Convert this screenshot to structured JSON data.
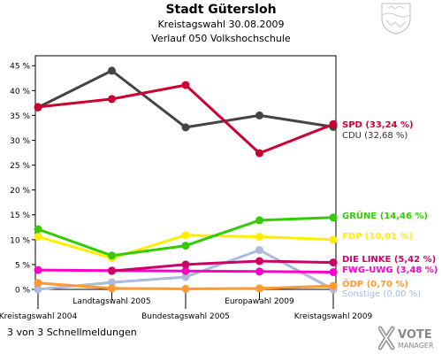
{
  "header": {
    "title": "Stadt Gütersloh",
    "subtitle": "Kreistagswahl 30.08.2009",
    "subtitle2": "Verlauf 050 Volkshochschule"
  },
  "footer": {
    "text": "3 von 3 Schnellmeldungen"
  },
  "logo": {
    "line1": "VOTE",
    "line2": "MANAGER"
  },
  "chart_data": {
    "type": "line",
    "x": [
      "Kreistagswahl 2004",
      "Landtagswahl 2005",
      "Bundestagswahl 2005",
      "Europawahl 2009",
      "Kreistagswahl 2009"
    ],
    "ylim": [
      0,
      47
    ],
    "yticks": [
      {
        "value": 0,
        "label": "0 %"
      },
      {
        "value": 5,
        "label": "5 %"
      },
      {
        "value": 10,
        "label": "10 %"
      },
      {
        "value": 15,
        "label": "15 %"
      },
      {
        "value": 20,
        "label": "20 %"
      },
      {
        "value": 25,
        "label": "25 %"
      },
      {
        "value": 30,
        "label": "30 %"
      },
      {
        "value": 35,
        "label": "35 %"
      },
      {
        "value": 40,
        "label": "40 %"
      },
      {
        "value": 45,
        "label": "45 %"
      }
    ],
    "grid": false,
    "legend": "right",
    "series": [
      {
        "name": "SPD",
        "label": "SPD (33,24 %)",
        "color": "#cc0033",
        "values": [
          36.7,
          38.3,
          41.1,
          27.4,
          33.24
        ]
      },
      {
        "name": "CDU",
        "label": "CDU (32,68 %)",
        "color": "#444444",
        "values": [
          36.6,
          44.0,
          32.6,
          35.0,
          32.68
        ]
      },
      {
        "name": "GRÜNE",
        "label": "GRÜNE (14,46 %)",
        "color": "#33cc00",
        "values": [
          12.1,
          6.8,
          8.8,
          13.9,
          14.46
        ]
      },
      {
        "name": "FDP",
        "label": "FDP (10,01 %)",
        "color": "#ffee00",
        "values": [
          10.6,
          6.3,
          10.9,
          10.6,
          10.01
        ]
      },
      {
        "name": "DIE LINKE",
        "label": "DIE LINKE (5,42 %)",
        "color": "#cc0066",
        "values": [
          null,
          3.7,
          5.0,
          5.7,
          5.42
        ]
      },
      {
        "name": "FWG-UWG",
        "label": "FWG-UWG (3,48 %)",
        "color": "#ff00cc",
        "values": [
          3.9,
          3.8,
          3.7,
          3.6,
          3.48
        ]
      },
      {
        "name": "ÖDP",
        "label": "ÖDP (0,70 %)",
        "color": "#ff9933",
        "values": [
          1.3,
          0.2,
          0.1,
          0.2,
          0.7
        ]
      },
      {
        "name": "Sonstige",
        "label": "Sonstige (0,00 %)",
        "color": "#aabbdd",
        "values": [
          0.0,
          1.4,
          2.5,
          7.9,
          0.0
        ]
      }
    ]
  }
}
